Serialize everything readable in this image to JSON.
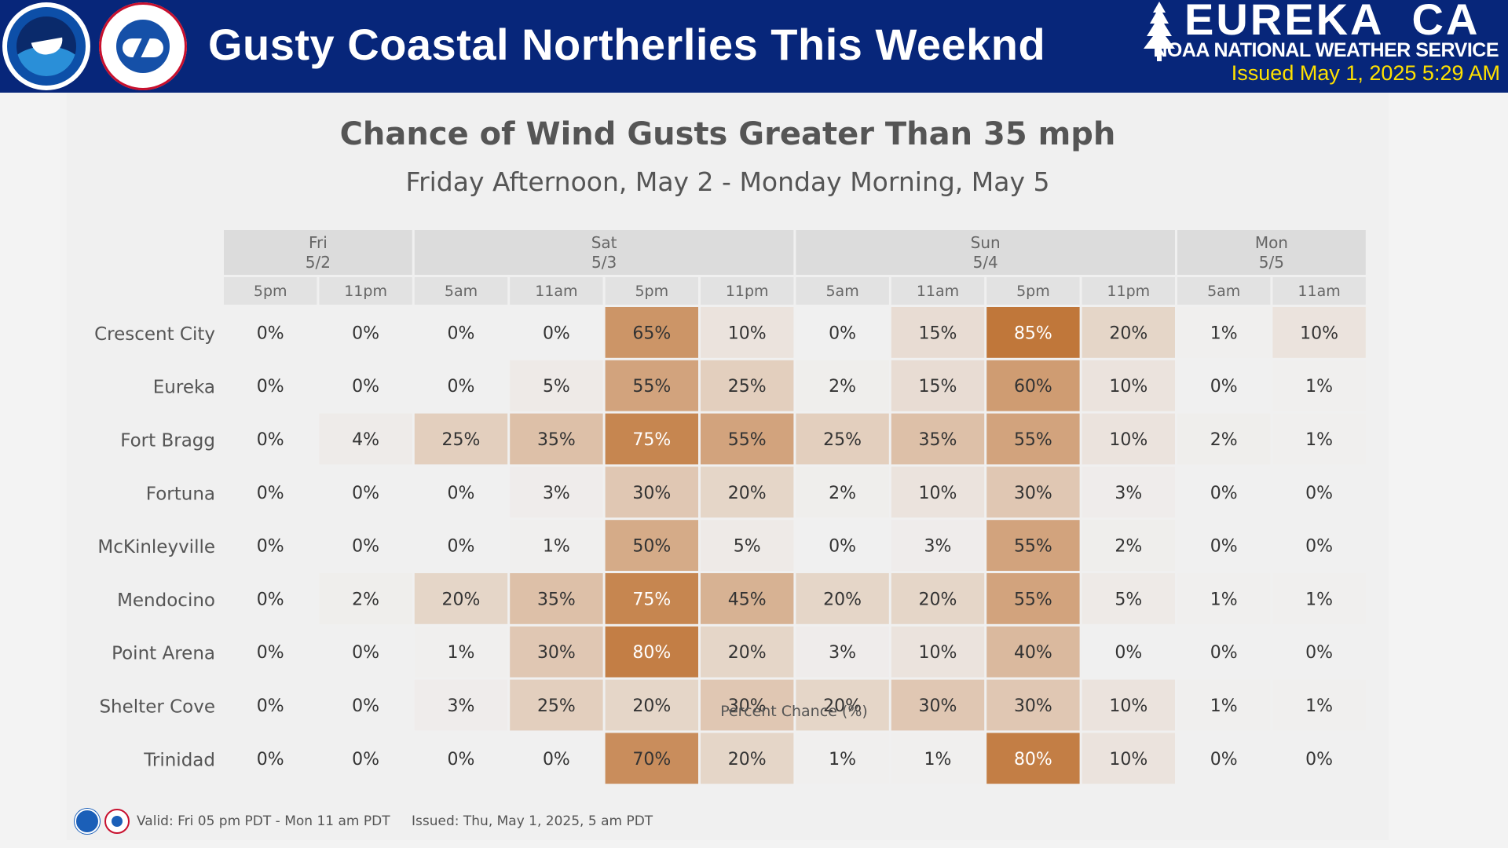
{
  "header": {
    "title": "Gusty Coastal Northerlies This Weeknd",
    "office": "EUREKA  CA",
    "agency": "NOAA NATIONAL WEATHER SERVICE",
    "issued": "Issued May 1, 2025 5:29 AM",
    "colors": {
      "banner": "#07267a",
      "issued_text": "#ffe100"
    },
    "logos": [
      "noaa-logo",
      "nws-logo",
      "tree-icon"
    ]
  },
  "chart_data": {
    "type": "heatmap",
    "title": "Chance of Wind Gusts Greater Than 35 mph",
    "subtitle": "Friday Afternoon, May 2 - Monday Morning, May 5",
    "xlabel": "Percent Chance (%)",
    "day_groups": [
      {
        "day": "Fri",
        "date": "5/2",
        "span": 2
      },
      {
        "day": "Sat",
        "date": "5/3",
        "span": 4
      },
      {
        "day": "Sun",
        "date": "5/4",
        "span": 4
      },
      {
        "day": "Mon",
        "date": "5/5",
        "span": 2
      }
    ],
    "times": [
      "5pm",
      "11pm",
      "5am",
      "11am",
      "5pm",
      "11pm",
      "5am",
      "11am",
      "5pm",
      "11pm",
      "5am",
      "11am"
    ],
    "locations": [
      "Crescent City",
      "Eureka",
      "Fort Bragg",
      "Fortuna",
      "McKinleyville",
      "Mendocino",
      "Point Arena",
      "Shelter Cove",
      "Trinidad"
    ],
    "values": [
      [
        0,
        0,
        0,
        0,
        65,
        10,
        0,
        15,
        85,
        20,
        1,
        10
      ],
      [
        0,
        0,
        0,
        5,
        55,
        25,
        2,
        15,
        60,
        10,
        0,
        1
      ],
      [
        0,
        4,
        25,
        35,
        75,
        55,
        25,
        35,
        55,
        10,
        2,
        1
      ],
      [
        0,
        0,
        0,
        3,
        30,
        20,
        2,
        10,
        30,
        3,
        0,
        0
      ],
      [
        0,
        0,
        0,
        1,
        50,
        5,
        0,
        3,
        55,
        2,
        0,
        0
      ],
      [
        0,
        2,
        20,
        35,
        75,
        45,
        20,
        20,
        55,
        5,
        1,
        1
      ],
      [
        0,
        0,
        1,
        30,
        80,
        20,
        3,
        10,
        40,
        0,
        0,
        0
      ],
      [
        0,
        0,
        3,
        25,
        20,
        30,
        20,
        30,
        30,
        10,
        1,
        1
      ],
      [
        0,
        0,
        0,
        0,
        70,
        20,
        1,
        1,
        80,
        10,
        0,
        0
      ]
    ],
    "value_suffix": "%",
    "color_scale": {
      "low": "#f0f0f0",
      "high": "#c0773a"
    },
    "header_colors": {
      "day": "#dcdcdc",
      "time": "#e2e2e2"
    }
  },
  "footer": {
    "valid": "Valid: Fri 05 pm PDT - Mon 11 am PDT",
    "issued": "Issued: Thu, May 1, 2025, 5 am PDT"
  }
}
